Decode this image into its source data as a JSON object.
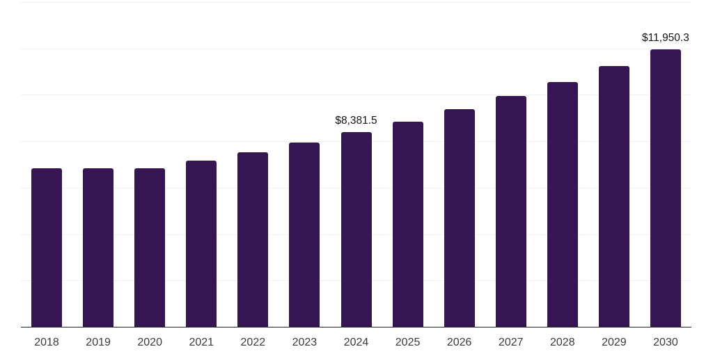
{
  "chart_data": {
    "type": "bar",
    "title": "",
    "xlabel": "",
    "ylabel": "",
    "categories": [
      "2018",
      "2019",
      "2020",
      "2021",
      "2022",
      "2023",
      "2024",
      "2025",
      "2026",
      "2027",
      "2028",
      "2029",
      "2030"
    ],
    "values": [
      6840,
      6845,
      6835,
      7155,
      7520,
      7935,
      8381.5,
      8855,
      9385,
      9940,
      10560,
      11230,
      11950.3
    ],
    "labeled_points": [
      {
        "category": "2024",
        "label": "$8,381.5"
      },
      {
        "category": "2030",
        "label": "$11,950.3"
      }
    ],
    "ylim": [
      0,
      14000
    ],
    "gridline_step": 2000,
    "grid": "horizontal",
    "legend": "none",
    "colors": {
      "bar": "#351652",
      "background": "#ffffff",
      "gridline": "#f1f1f1",
      "axis_line": "#262626",
      "tick_label": "#3b3b3b",
      "value_label": "#141414"
    }
  }
}
